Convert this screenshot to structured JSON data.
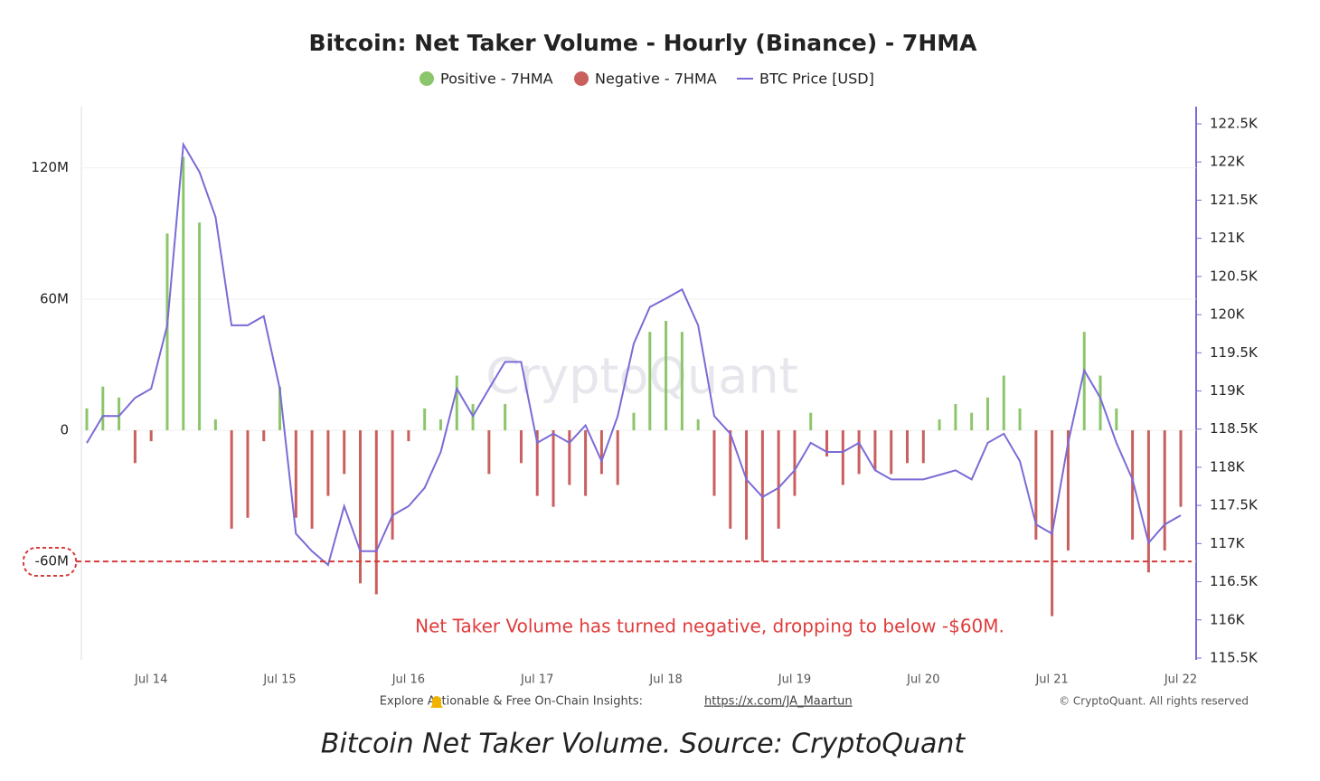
{
  "chart_data": {
    "type": "bar",
    "title": "Bitcoin: Net Taker Volume - Hourly (Binance) - 7HMA",
    "categories": [
      null,
      null,
      null,
      null,
      "Jul 14",
      null,
      null,
      null,
      null,
      null,
      null,
      null,
      "Jul 15",
      null,
      null,
      null,
      null,
      null,
      null,
      null,
      "Jul 16",
      null,
      null,
      null,
      null,
      null,
      null,
      null,
      "Jul 17",
      null,
      null,
      null,
      null,
      null,
      null,
      null,
      "Jul 18",
      null,
      null,
      null,
      null,
      null,
      null,
      null,
      "Jul 19",
      null,
      null,
      null,
      null,
      null,
      null,
      null,
      "Jul 20",
      null,
      null,
      null,
      null,
      null,
      null,
      null,
      "Jul 21",
      null,
      null,
      null,
      null,
      null,
      null,
      null,
      "Jul 22"
    ],
    "series": [
      {
        "name": "Positive - 7HMA",
        "type": "bar",
        "color": "#8cc66a",
        "values": [
          10,
          20,
          15,
          null,
          null,
          90,
          125,
          95,
          5,
          null,
          null,
          null,
          20,
          null,
          null,
          null,
          null,
          null,
          null,
          null,
          null,
          10,
          5,
          25,
          12,
          null,
          12,
          null,
          null,
          null,
          null,
          null,
          null,
          null,
          8,
          45,
          50,
          45,
          5,
          null,
          null,
          null,
          null,
          null,
          null,
          8,
          null,
          null,
          null,
          null,
          null,
          null,
          null,
          5,
          12,
          8,
          15,
          25,
          10,
          null,
          null,
          null,
          45,
          25,
          10,
          null,
          null,
          null,
          null
        ]
      },
      {
        "name": "Negative - 7HMA",
        "type": "bar",
        "color": "#c9605e",
        "values": [
          null,
          null,
          null,
          -15,
          -5,
          null,
          null,
          null,
          null,
          -45,
          -40,
          -5,
          null,
          -40,
          -45,
          -30,
          -20,
          -70,
          -75,
          -50,
          -5,
          null,
          null,
          null,
          null,
          -20,
          null,
          -15,
          -30,
          -35,
          -25,
          -30,
          -20,
          -25,
          null,
          null,
          null,
          null,
          null,
          -30,
          -45,
          -50,
          -60,
          -45,
          -30,
          null,
          -12,
          -25,
          -20,
          -18,
          -20,
          -15,
          -15,
          null,
          null,
          null,
          null,
          null,
          null,
          -50,
          -85,
          -55,
          null,
          null,
          null,
          -50,
          -65,
          -55,
          -35
        ]
      },
      {
        "name": "BTC Price [USD]",
        "type": "line",
        "axis": "y2",
        "color": "#7b6bd6",
        "values": [
          118318,
          118673,
          118670,
          118910,
          119030,
          119860,
          122230,
          121870,
          121280,
          119860,
          119860,
          119980,
          119030,
          117130,
          116900,
          116720,
          117490,
          116900,
          116900,
          117370,
          117490,
          117730,
          118200,
          119030,
          118670,
          119030,
          119380,
          119380,
          118320,
          118440,
          118320,
          118550,
          118080,
          118670,
          119620,
          120100,
          120210,
          120330,
          119860,
          118670,
          118440,
          117840,
          117610,
          117730,
          117960,
          118320,
          118200,
          118200,
          118320,
          117960,
          117840,
          117840,
          117840,
          117900,
          117960,
          117840,
          118320,
          118440,
          118080,
          117250,
          117130,
          118320,
          119270,
          118910,
          118320,
          117840,
          117010,
          117250,
          117370
        ]
      }
    ],
    "ylim": [
      -105,
      148
    ],
    "yticks": [
      {
        "value": -60,
        "label": "-60M"
      },
      0,
      {
        "value": 60,
        "label": "60M"
      },
      {
        "value": 120,
        "label": "120M"
      }
    ],
    "y2lim": [
      115476,
      122725
    ],
    "y2ticks": [
      {
        "value": 115500,
        "label": "115.5K"
      },
      {
        "value": 116000,
        "label": "116K"
      },
      {
        "value": 116500,
        "label": "116.5K"
      },
      {
        "value": 117000,
        "label": "117K"
      },
      {
        "value": 117500,
        "label": "117.5K"
      },
      {
        "value": 118000,
        "label": "118K"
      },
      {
        "value": 118500,
        "label": "118.5K"
      },
      {
        "value": 119000,
        "label": "119K"
      },
      {
        "value": 119500,
        "label": "119.5K"
      },
      {
        "value": 120000,
        "label": "120K"
      },
      {
        "value": 120500,
        "label": "120.5K"
      },
      {
        "value": 121000,
        "label": "121K"
      },
      {
        "value": 121500,
        "label": "121.5K"
      },
      {
        "value": 122000,
        "label": "122K"
      },
      {
        "value": 122500,
        "label": "122.5K"
      }
    ],
    "grid": true,
    "annotation": "Net Taker Volume has turned negative, dropping to below -$60M.",
    "watermark": "CryptoQuant"
  },
  "footer": {
    "text": "Explore Actionable & Free On-Chain Insights:",
    "link": "https://x.com/JA_Maartun",
    "copyright": "© CryptoQuant. All rights reserved"
  },
  "caption": "Bitcoin Net Taker Volume. Source: CryptoQuant"
}
